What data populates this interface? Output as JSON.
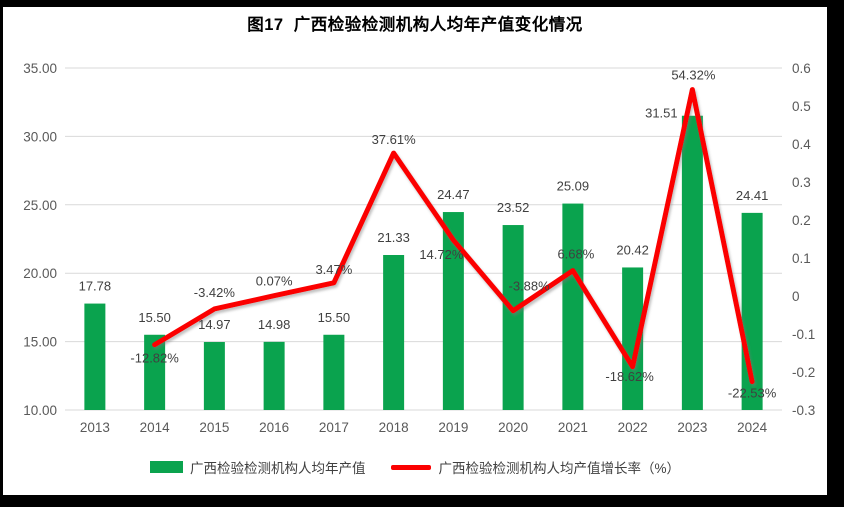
{
  "chart_data": {
    "type": "combo-bar-line",
    "title": "图17  广西检验检测机构人均年产值变化情况",
    "categories": [
      "2013",
      "2014",
      "2015",
      "2016",
      "2017",
      "2018",
      "2019",
      "2020",
      "2021",
      "2022",
      "2023",
      "2024"
    ],
    "series": [
      {
        "name": "广西检验检测机构人均年产值",
        "type": "bar",
        "axis": "left",
        "color": "#0aa34e",
        "values": [
          17.78,
          15.5,
          14.97,
          14.98,
          15.5,
          21.33,
          24.47,
          23.52,
          25.09,
          20.42,
          31.51,
          24.41
        ],
        "labels": [
          "17.78",
          "15.50",
          "14.97",
          "14.98",
          "15.50",
          "21.33",
          "24.47",
          "23.52",
          "25.09",
          "20.42",
          "31.51",
          "24.41"
        ],
        "label_offsets": [
          [
            0,
            -13
          ],
          [
            0,
            -13
          ],
          [
            0,
            -13
          ],
          [
            0,
            -13
          ],
          [
            0,
            -13
          ],
          [
            0,
            -13
          ],
          [
            0,
            -13
          ],
          [
            0,
            -13
          ],
          [
            0,
            -13
          ],
          [
            0,
            -13
          ],
          [
            -31,
            2
          ],
          [
            0,
            -13
          ]
        ]
      },
      {
        "name": "广西检验检测机构人均产值增长率（%）",
        "type": "line",
        "axis": "right",
        "color": "#fb0000",
        "values_percent": [
          null,
          -12.82,
          -3.42,
          0.07,
          3.47,
          37.61,
          14.72,
          -3.88,
          6.68,
          -18.62,
          54.32,
          -22.53
        ],
        "labels": [
          "",
          "-12.82%",
          "-3.42%",
          "0.07%",
          "3.47%",
          "37.61%",
          "14.72%",
          "-3.88%",
          "6.68%",
          "-18.62%",
          "54.32%",
          "-22.53%"
        ],
        "label_offsets": [
          [
            0,
            0
          ],
          [
            0,
            18
          ],
          [
            0,
            -12
          ],
          [
            0,
            -10
          ],
          [
            0,
            -9
          ],
          [
            0,
            -9
          ],
          [
            -12,
            19
          ],
          [
            16,
            -20
          ],
          [
            3,
            -12
          ],
          [
            -3,
            14
          ],
          [
            1,
            -10
          ],
          [
            0,
            16
          ]
        ]
      }
    ],
    "left_axis": {
      "min": 10,
      "max": 35,
      "step": 5,
      "tick_labels": [
        "35.00",
        "30.00",
        "25.00",
        "20.00",
        "15.00",
        "10.00"
      ]
    },
    "right_axis": {
      "min": -0.3,
      "max": 0.6,
      "step": 0.1,
      "tick_labels": [
        "0.6",
        "0.5",
        "0.4",
        "0.3",
        "0.2",
        "0.1",
        "0",
        "-0.1",
        "-0.2",
        "-0.3"
      ]
    },
    "grid": true,
    "legend_position": "bottom",
    "colors": {
      "grid": "#d9d9d9",
      "axis_text": "#595959",
      "data_label": "#404040",
      "title": "#000000",
      "frame": "#000000",
      "background": "#ffffff"
    }
  }
}
